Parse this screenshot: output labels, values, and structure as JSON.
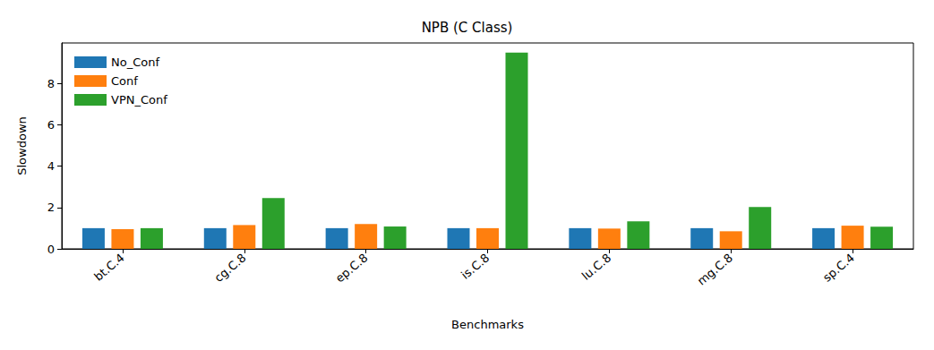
{
  "chart_data": {
    "type": "bar",
    "title": "NPB (C Class)",
    "x_label": "Benchmarks",
    "y_label": "Slowdown",
    "categories": [
      "bt.C.4",
      "cg.C.8",
      "ep.C.8",
      "is.C.8",
      "lu.C.8",
      "mg.C.8",
      "sp.C.4"
    ],
    "series": [
      {
        "name": "No_Conf",
        "color": "#1f77b4",
        "values": [
          1.0,
          1.0,
          1.0,
          1.0,
          1.0,
          1.0,
          1.0
        ]
      },
      {
        "name": "Conf",
        "color": "#ff7f0e",
        "values": [
          0.95,
          1.15,
          1.2,
          1.0,
          0.98,
          0.85,
          1.12
        ]
      },
      {
        "name": "VPN_Conf",
        "color": "#2ca02c",
        "values": [
          1.0,
          2.45,
          1.08,
          9.48,
          1.33,
          2.02,
          1.07
        ]
      }
    ],
    "ylim": [
      0,
      9.95
    ],
    "yticks": [
      0,
      2,
      4,
      6,
      8
    ],
    "grid": false,
    "legend": "upper left"
  }
}
